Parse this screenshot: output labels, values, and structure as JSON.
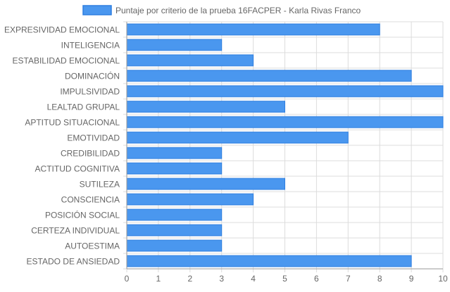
{
  "chart_data": {
    "type": "bar",
    "orientation": "horizontal",
    "legend": {
      "position": "top",
      "entries": [
        "Puntaje por criterio de la prueba 16FACPER - Karla Rivas Franco"
      ]
    },
    "categories": [
      "EXPRESIVIDAD EMOCIONAL",
      "INTELIGENCIA",
      "ESTABILIDAD EMOCIONAL",
      "DOMINACIÓN",
      "IMPULSIVIDAD",
      "LEALTAD GRUPAL",
      "APTITUD SITUACIONAL",
      "EMOTIVIDAD",
      "CREDIBILIDAD",
      "ACTITUD COGNITIVA",
      "SUTILEZA",
      "CONSCIENCIA",
      "POSICIÓN SOCIAL",
      "CERTEZA INDIVIDUAL",
      "AUTOESTIMA",
      "ESTADO DE ANSIEDAD"
    ],
    "series": [
      {
        "name": "Puntaje por criterio de la prueba 16FACPER - Karla Rivas Franco",
        "values": [
          8,
          3,
          4,
          9,
          10,
          5,
          10,
          7,
          3,
          3,
          5,
          4,
          3,
          3,
          3,
          9
        ]
      }
    ],
    "xlim": [
      0,
      10
    ],
    "x_ticks": [
      "0",
      "1",
      "2",
      "3",
      "4",
      "5",
      "6",
      "7",
      "8",
      "9",
      "10"
    ],
    "grid": true,
    "colors": {
      "bar_fill": "#4a97ef",
      "bar_stroke": "#2f7fe0",
      "grid": "#dcdcdc",
      "axis": "#9a9a9a",
      "text": "#666666"
    }
  }
}
